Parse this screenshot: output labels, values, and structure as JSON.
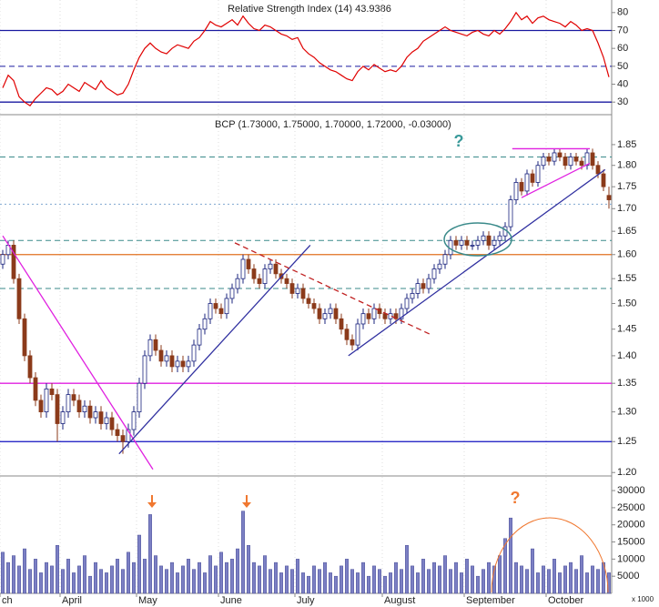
{
  "chart_data": [
    {
      "type": "line",
      "title": "Relative Strength Index (14) 43.9386",
      "color": "#e00000",
      "values": [
        38,
        45,
        42,
        33,
        30,
        28,
        32,
        35,
        38,
        37,
        34,
        36,
        40,
        38,
        36,
        41,
        39,
        37,
        42,
        38,
        36,
        34,
        35,
        40,
        48,
        55,
        60,
        63,
        60,
        58,
        57,
        60,
        62,
        61,
        60,
        64,
        66,
        70,
        75,
        73,
        72,
        74,
        76,
        73,
        78,
        74,
        71,
        70,
        73,
        72,
        70,
        68,
        67,
        65,
        66,
        60,
        57,
        55,
        52,
        50,
        48,
        47,
        45,
        43,
        42,
        47,
        50,
        48,
        51,
        49,
        47,
        48,
        47,
        50,
        55,
        58,
        60,
        64,
        66,
        68,
        70,
        72,
        70,
        69,
        68,
        67,
        69,
        70,
        68,
        67,
        70,
        68,
        71,
        75,
        80,
        76,
        78,
        74,
        77,
        78,
        76,
        75,
        74,
        72,
        75,
        73,
        70,
        71,
        70,
        63,
        55,
        44
      ],
      "ylim": [
        23.5,
        86
      ],
      "yticks": [
        30,
        40,
        50,
        60,
        70,
        80
      ],
      "levels": [
        {
          "value": 70,
          "style": "solid",
          "color": "#1a1aa0"
        },
        {
          "value": 50,
          "style": "dashed",
          "color": "#1a1aa0"
        },
        {
          "value": 30,
          "style": "solid",
          "color": "#1a1aa0"
        }
      ]
    },
    {
      "type": "candlestick",
      "title": "BCP (1.73000, 1.75000, 1.70000, 1.72000, -0.03000)",
      "log": true,
      "up_color": "#ffffff",
      "down_color": "#8b3a1a",
      "outline_color": "#1a237e",
      "ohlc": [
        [
          1.58,
          1.61,
          1.57,
          1.6
        ],
        [
          1.6,
          1.63,
          1.59,
          1.62
        ],
        [
          1.62,
          1.63,
          1.54,
          1.55
        ],
        [
          1.55,
          1.56,
          1.46,
          1.47
        ],
        [
          1.47,
          1.48,
          1.39,
          1.4
        ],
        [
          1.4,
          1.41,
          1.35,
          1.36
        ],
        [
          1.36,
          1.37,
          1.31,
          1.32
        ],
        [
          1.32,
          1.33,
          1.29,
          1.3
        ],
        [
          1.3,
          1.35,
          1.29,
          1.34
        ],
        [
          1.34,
          1.35,
          1.32,
          1.33
        ],
        [
          1.33,
          1.34,
          1.25,
          1.28
        ],
        [
          1.28,
          1.31,
          1.27,
          1.3
        ],
        [
          1.3,
          1.34,
          1.29,
          1.33
        ],
        [
          1.33,
          1.34,
          1.31,
          1.32
        ],
        [
          1.32,
          1.33,
          1.29,
          1.3
        ],
        [
          1.3,
          1.32,
          1.29,
          1.31
        ],
        [
          1.31,
          1.32,
          1.28,
          1.29
        ],
        [
          1.29,
          1.31,
          1.28,
          1.3
        ],
        [
          1.3,
          1.31,
          1.27,
          1.28
        ],
        [
          1.28,
          1.3,
          1.27,
          1.29
        ],
        [
          1.29,
          1.3,
          1.26,
          1.27
        ],
        [
          1.27,
          1.28,
          1.25,
          1.26
        ],
        [
          1.26,
          1.27,
          1.23,
          1.25
        ],
        [
          1.25,
          1.28,
          1.24,
          1.27
        ],
        [
          1.27,
          1.31,
          1.26,
          1.3
        ],
        [
          1.3,
          1.36,
          1.29,
          1.35
        ],
        [
          1.35,
          1.41,
          1.34,
          1.4
        ],
        [
          1.4,
          1.44,
          1.39,
          1.43
        ],
        [
          1.43,
          1.44,
          1.4,
          1.41
        ],
        [
          1.41,
          1.42,
          1.38,
          1.39
        ],
        [
          1.39,
          1.41,
          1.38,
          1.4
        ],
        [
          1.4,
          1.41,
          1.37,
          1.38
        ],
        [
          1.38,
          1.4,
          1.37,
          1.39
        ],
        [
          1.39,
          1.4,
          1.37,
          1.38
        ],
        [
          1.38,
          1.4,
          1.37,
          1.39
        ],
        [
          1.39,
          1.43,
          1.38,
          1.42
        ],
        [
          1.42,
          1.46,
          1.41,
          1.45
        ],
        [
          1.45,
          1.48,
          1.44,
          1.47
        ],
        [
          1.47,
          1.51,
          1.46,
          1.5
        ],
        [
          1.5,
          1.51,
          1.48,
          1.49
        ],
        [
          1.49,
          1.5,
          1.47,
          1.48
        ],
        [
          1.48,
          1.52,
          1.47,
          1.51
        ],
        [
          1.51,
          1.54,
          1.5,
          1.53
        ],
        [
          1.53,
          1.56,
          1.52,
          1.55
        ],
        [
          1.55,
          1.6,
          1.54,
          1.59
        ],
        [
          1.59,
          1.6,
          1.56,
          1.57
        ],
        [
          1.57,
          1.58,
          1.54,
          1.55
        ],
        [
          1.55,
          1.56,
          1.53,
          1.54
        ],
        [
          1.54,
          1.58,
          1.53,
          1.57
        ],
        [
          1.57,
          1.59,
          1.56,
          1.58
        ],
        [
          1.58,
          1.59,
          1.55,
          1.56
        ],
        [
          1.56,
          1.57,
          1.54,
          1.55
        ],
        [
          1.55,
          1.56,
          1.53,
          1.54
        ],
        [
          1.54,
          1.55,
          1.51,
          1.52
        ],
        [
          1.52,
          1.54,
          1.51,
          1.53
        ],
        [
          1.53,
          1.54,
          1.5,
          1.51
        ],
        [
          1.51,
          1.52,
          1.49,
          1.5
        ],
        [
          1.5,
          1.51,
          1.48,
          1.49
        ],
        [
          1.49,
          1.5,
          1.46,
          1.47
        ],
        [
          1.47,
          1.49,
          1.46,
          1.48
        ],
        [
          1.48,
          1.5,
          1.47,
          1.49
        ],
        [
          1.49,
          1.5,
          1.46,
          1.47
        ],
        [
          1.47,
          1.48,
          1.44,
          1.45
        ],
        [
          1.45,
          1.46,
          1.42,
          1.43
        ],
        [
          1.43,
          1.44,
          1.41,
          1.42
        ],
        [
          1.42,
          1.47,
          1.41,
          1.46
        ],
        [
          1.46,
          1.49,
          1.45,
          1.48
        ],
        [
          1.48,
          1.49,
          1.46,
          1.47
        ],
        [
          1.47,
          1.5,
          1.46,
          1.49
        ],
        [
          1.49,
          1.5,
          1.47,
          1.48
        ],
        [
          1.48,
          1.49,
          1.46,
          1.47
        ],
        [
          1.47,
          1.49,
          1.46,
          1.48
        ],
        [
          1.48,
          1.49,
          1.46,
          1.47
        ],
        [
          1.47,
          1.5,
          1.46,
          1.49
        ],
        [
          1.49,
          1.52,
          1.48,
          1.51
        ],
        [
          1.51,
          1.53,
          1.5,
          1.52
        ],
        [
          1.52,
          1.55,
          1.51,
          1.54
        ],
        [
          1.54,
          1.55,
          1.52,
          1.53
        ],
        [
          1.53,
          1.56,
          1.52,
          1.55
        ],
        [
          1.55,
          1.58,
          1.54,
          1.57
        ],
        [
          1.57,
          1.59,
          1.56,
          1.58
        ],
        [
          1.58,
          1.61,
          1.57,
          1.6
        ],
        [
          1.6,
          1.64,
          1.59,
          1.63
        ],
        [
          1.63,
          1.64,
          1.61,
          1.62
        ],
        [
          1.62,
          1.64,
          1.61,
          1.63
        ],
        [
          1.63,
          1.64,
          1.61,
          1.62
        ],
        [
          1.62,
          1.63,
          1.61,
          1.62
        ],
        [
          1.62,
          1.64,
          1.61,
          1.63
        ],
        [
          1.63,
          1.65,
          1.62,
          1.64
        ],
        [
          1.64,
          1.65,
          1.61,
          1.62
        ],
        [
          1.62,
          1.64,
          1.61,
          1.63
        ],
        [
          1.63,
          1.65,
          1.62,
          1.64
        ],
        [
          1.64,
          1.67,
          1.63,
          1.66
        ],
        [
          1.66,
          1.73,
          1.65,
          1.72
        ],
        [
          1.72,
          1.77,
          1.71,
          1.76
        ],
        [
          1.76,
          1.77,
          1.73,
          1.74
        ],
        [
          1.74,
          1.79,
          1.73,
          1.78
        ],
        [
          1.78,
          1.79,
          1.75,
          1.76
        ],
        [
          1.76,
          1.81,
          1.75,
          1.8
        ],
        [
          1.8,
          1.83,
          1.79,
          1.82
        ],
        [
          1.82,
          1.83,
          1.8,
          1.81
        ],
        [
          1.81,
          1.84,
          1.8,
          1.83
        ],
        [
          1.83,
          1.84,
          1.81,
          1.82
        ],
        [
          1.82,
          1.83,
          1.79,
          1.8
        ],
        [
          1.8,
          1.83,
          1.79,
          1.82
        ],
        [
          1.82,
          1.83,
          1.8,
          1.81
        ],
        [
          1.81,
          1.82,
          1.79,
          1.8
        ],
        [
          1.8,
          1.84,
          1.79,
          1.83
        ],
        [
          1.83,
          1.84,
          1.79,
          1.8
        ],
        [
          1.8,
          1.81,
          1.77,
          1.78
        ],
        [
          1.78,
          1.79,
          1.74,
          1.75
        ],
        [
          1.73,
          1.75,
          1.7,
          1.72
        ]
      ],
      "ylim": [
        1.196,
        1.92
      ],
      "yticks": [
        {
          "value": 1.2,
          "label": "1.20"
        },
        1.25,
        {
          "value": 1.3,
          "label": "1.30"
        },
        1.35,
        {
          "value": 1.4,
          "label": "1.40"
        },
        1.45,
        {
          "value": 1.5,
          "label": "1.50"
        },
        1.55,
        {
          "value": 1.6,
          "label": "1.60"
        },
        1.65,
        {
          "value": 1.7,
          "label": "1.70"
        },
        1.75,
        {
          "value": 1.8,
          "label": "1.80"
        },
        1.85
      ],
      "hlines": [
        {
          "value": 1.82,
          "style": "dashed",
          "color": "#3a8a8a"
        },
        {
          "value": 1.71,
          "style": "dotted",
          "color": "#7fa8d0"
        },
        {
          "value": 1.63,
          "style": "dashed",
          "color": "#3a8a8a"
        },
        {
          "value": 1.6,
          "style": "solid",
          "color": "#e07020"
        },
        {
          "value": 1.53,
          "style": "dashed",
          "color": "#3a8a8a"
        },
        {
          "value": 1.35,
          "style": "solid",
          "color": "#e020e0"
        },
        {
          "value": 1.25,
          "style": "solid",
          "color": "#1010c0"
        }
      ],
      "trendlines": [
        {
          "from": [
            0,
            1.64
          ],
          "to": [
            27.5,
            1.205
          ],
          "color": "#e020e0",
          "style": "solid"
        },
        {
          "from": [
            21.3,
            1.23
          ],
          "to": [
            56.3,
            1.62
          ],
          "color": "#3030a0",
          "style": "solid"
        },
        {
          "from": [
            42.5,
            1.625
          ],
          "to": [
            78.3,
            1.44
          ],
          "color": "#c02020",
          "style": "dashed"
        },
        {
          "from": [
            63.3,
            1.4
          ],
          "to": [
            110.3,
            1.79
          ],
          "color": "#3030a0",
          "style": "solid"
        },
        {
          "from": [
            93.3,
            1.84
          ],
          "to": [
            107.5,
            1.84
          ],
          "color": "#e020e0",
          "style": "solid"
        },
        {
          "from": [
            95,
            1.725
          ],
          "to": [
            107.5,
            1.805
          ],
          "color": "#e020e0",
          "style": "solid"
        }
      ],
      "annotations": [
        "?"
      ]
    },
    {
      "type": "bar",
      "color": "#7c80c4",
      "categories": [
        "ch",
        null,
        null,
        null,
        null,
        null,
        null,
        null,
        null,
        null,
        null,
        "April",
        null,
        null,
        null,
        null,
        null,
        null,
        null,
        null,
        null,
        null,
        null,
        null,
        null,
        "May",
        null,
        null,
        null,
        null,
        null,
        null,
        null,
        null,
        null,
        null,
        null,
        null,
        null,
        null,
        "June",
        null,
        null,
        null,
        null,
        null,
        null,
        null,
        null,
        null,
        null,
        null,
        null,
        null,
        "July",
        null,
        null,
        null,
        null,
        null,
        null,
        null,
        null,
        null,
        null,
        null,
        null,
        null,
        null,
        null,
        "August",
        null,
        null,
        null,
        null,
        null,
        null,
        null,
        null,
        null,
        null,
        null,
        null,
        null,
        null,
        "September",
        null,
        null,
        null,
        null,
        null,
        null,
        null,
        null,
        null,
        null,
        null,
        null,
        null,
        null,
        "October",
        null,
        null,
        null,
        null,
        null,
        null,
        null,
        null,
        null,
        null,
        null
      ],
      "values": [
        12000,
        9000,
        11000,
        8000,
        13000,
        7000,
        10000,
        6000,
        9000,
        8000,
        14000,
        7000,
        10000,
        6000,
        8000,
        11000,
        5000,
        9000,
        7000,
        6000,
        8000,
        10000,
        7000,
        12000,
        9000,
        17000,
        10000,
        23000,
        11000,
        8000,
        7000,
        9000,
        6000,
        8000,
        10000,
        7000,
        9000,
        6000,
        11000,
        8000,
        12000,
        9000,
        10000,
        13000,
        24000,
        14000,
        9000,
        8000,
        11000,
        7000,
        9000,
        6000,
        8000,
        7000,
        10000,
        6000,
        5000,
        8000,
        7000,
        9000,
        6000,
        5000,
        8000,
        10000,
        7000,
        6000,
        9000,
        5000,
        8000,
        7000,
        5000,
        6000,
        9000,
        7000,
        14000,
        8000,
        6000,
        10000,
        7000,
        9000,
        8000,
        11000,
        7000,
        9000,
        6000,
        10000,
        8000,
        5000,
        7000,
        9000,
        8000,
        11000,
        16000,
        22000,
        9000,
        8000,
        7000,
        13000,
        6000,
        8000,
        7000,
        10000,
        6000,
        8000,
        9000,
        7000,
        11000,
        6000,
        8000,
        7000,
        9000,
        6000
      ],
      "ylim": [
        0,
        34000
      ],
      "yticks": [
        5000,
        10000,
        15000,
        20000,
        25000,
        30000
      ],
      "unit_label": "x 1000",
      "annotations": [
        "?"
      ]
    }
  ]
}
